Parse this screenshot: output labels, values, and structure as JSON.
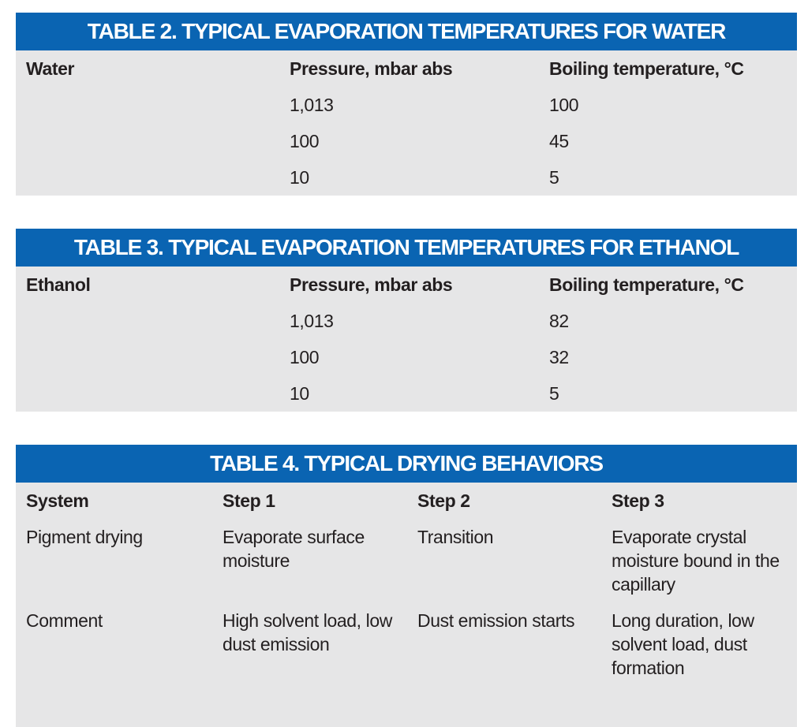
{
  "colors": {
    "header": "#0a64b2",
    "body": "#e6e6e7"
  },
  "table2": {
    "title": "TABLE 2.  TYPICAL EVAPORATION TEMPERATURES FOR WATER",
    "headers": [
      "Water",
      "Pressure, mbar abs",
      "Boiling temperature, °C"
    ],
    "rows": [
      [
        "",
        "1,013",
        "100"
      ],
      [
        "",
        "100",
        "45"
      ],
      [
        "",
        "10",
        "5"
      ]
    ]
  },
  "table3": {
    "title": "TABLE 3.  TYPICAL EVAPORATION TEMPERATURES FOR ETHANOL",
    "headers": [
      "Ethanol",
      "Pressure, mbar abs",
      "Boiling temperature, °C"
    ],
    "rows": [
      [
        "",
        "1,013",
        "82"
      ],
      [
        "",
        "100",
        "32"
      ],
      [
        "",
        "10",
        "5"
      ]
    ]
  },
  "table4": {
    "title": "TABLE 4.  TYPICAL DRYING BEHAVIORS",
    "headers": [
      "System",
      "Step 1",
      "Step 2",
      "Step 3"
    ],
    "rows": [
      [
        "Pigment drying",
        "Evaporate surface moisture",
        "Transition",
        "Evaporate crystal moisture bound in the capillary"
      ],
      [
        "Comment",
        "High solvent load, low dust emission",
        "Dust emission starts",
        "Long duration, low solvent load, dust formation"
      ]
    ]
  }
}
